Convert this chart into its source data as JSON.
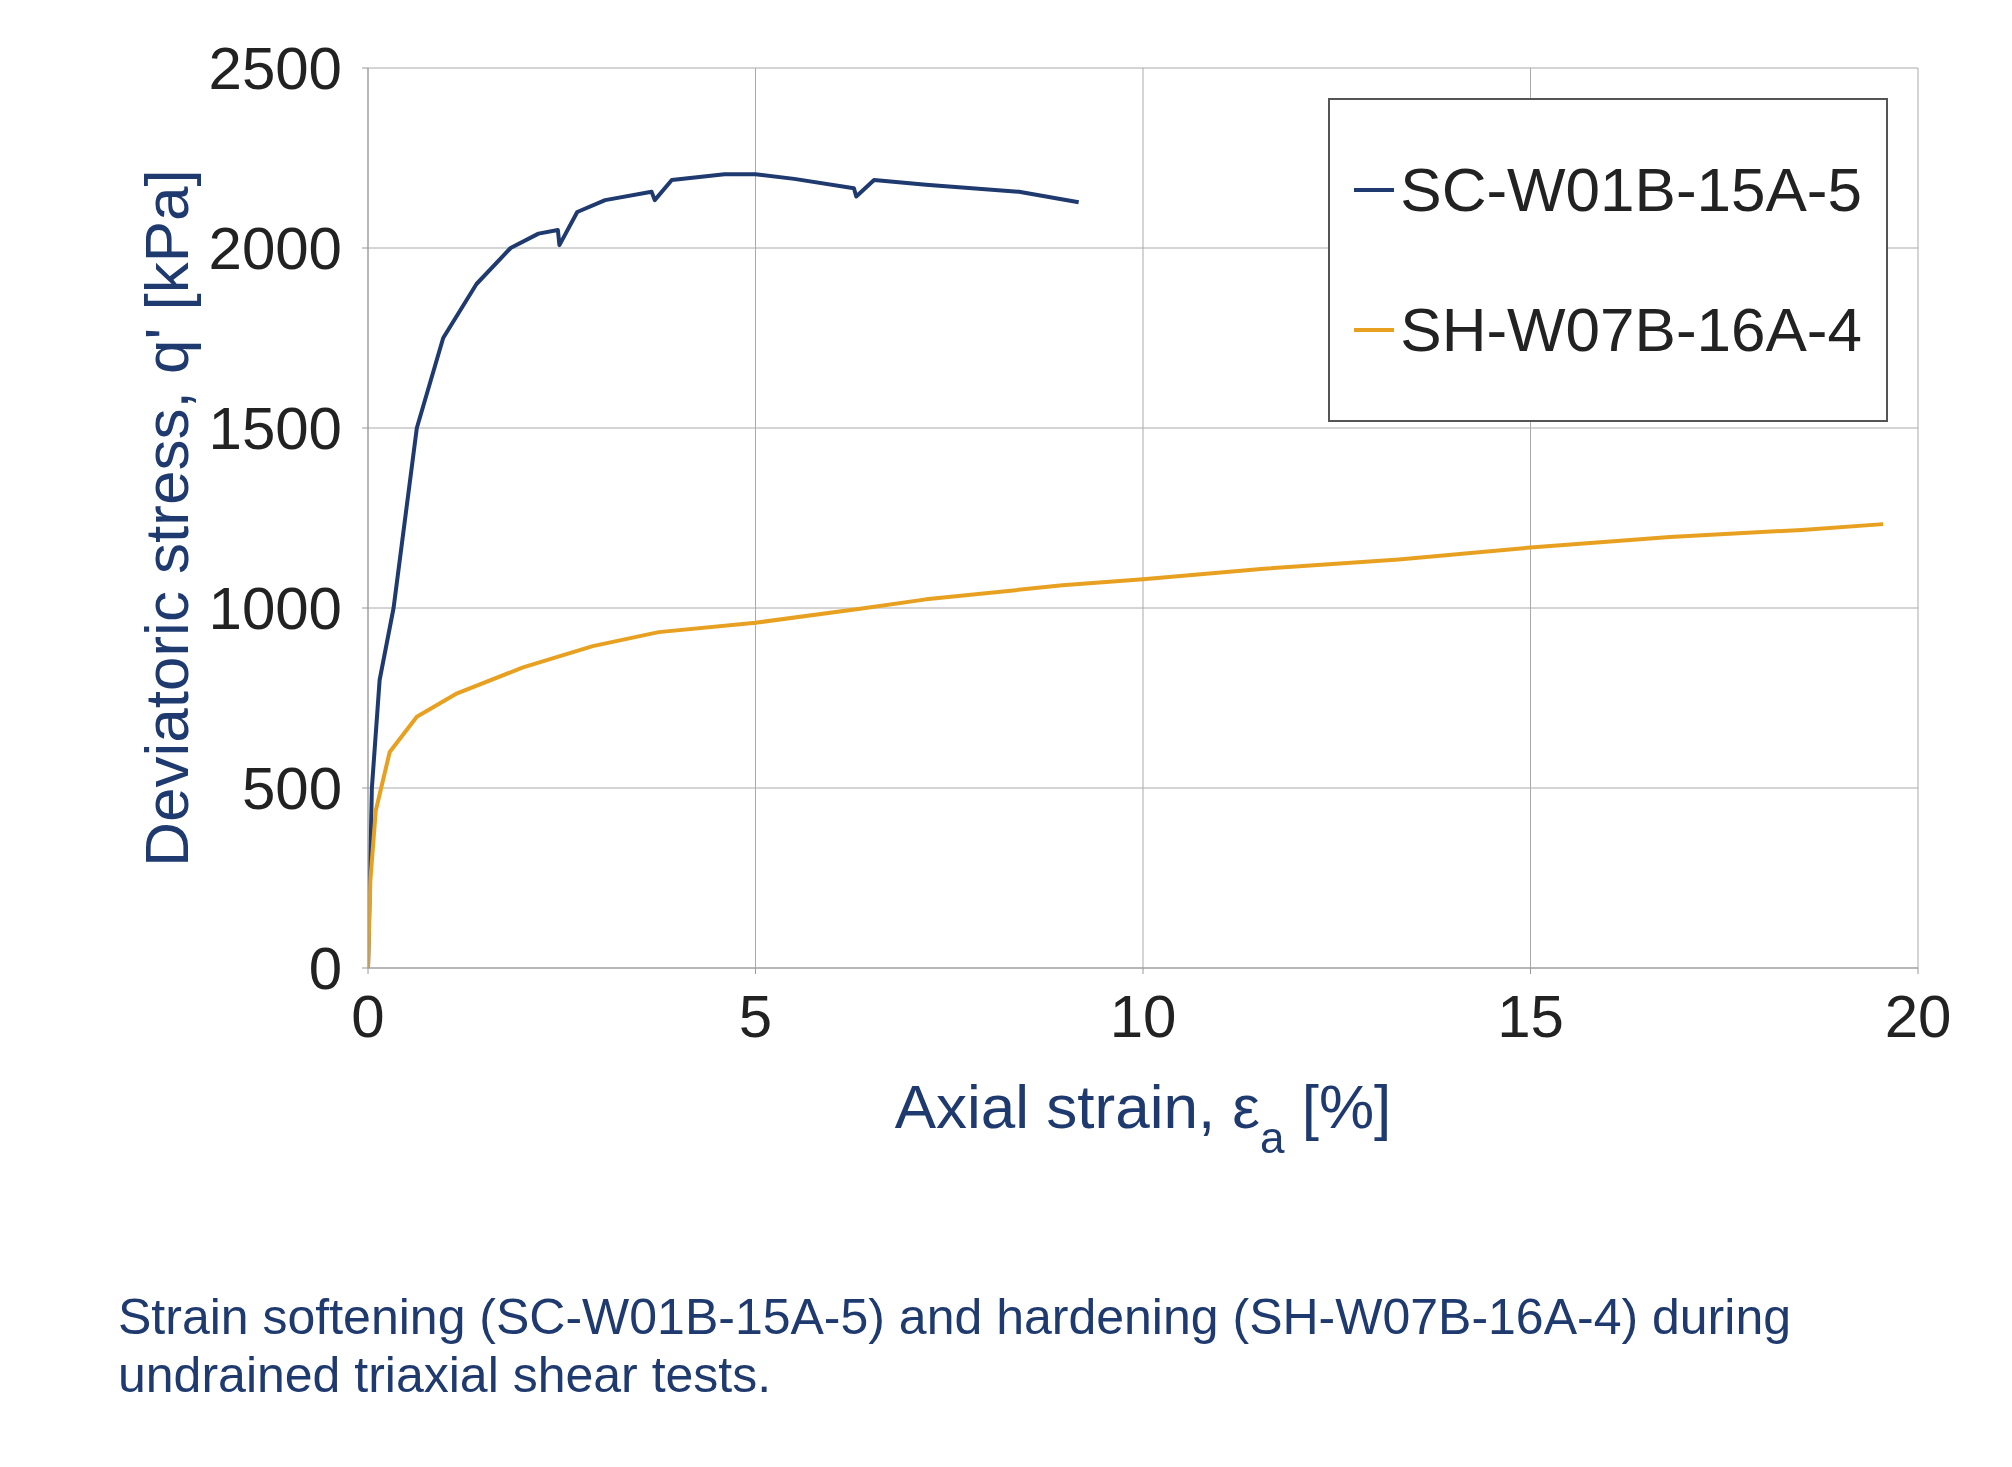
{
  "chart_data": {
    "type": "line",
    "xlabel": "Axial strain, ε$_{a}$ [%]",
    "ylabel": "Deviatoric stress, q' [kPa]",
    "xlim": [
      0,
      20
    ],
    "xticks": [
      0,
      5,
      10,
      15,
      20
    ],
    "ylim": [
      0,
      2500
    ],
    "yticks": [
      0,
      500,
      1000,
      1500,
      2000,
      2500
    ],
    "grid": true,
    "legend": "top right",
    "marker": "none",
    "line_style": "solid",
    "series": [
      {
        "name": "SC-W01B-15A-5",
        "color": "#1f3a6e",
        "x": [
          0,
          0.05,
          0.15,
          0.33,
          0.63,
          0.97,
          1.4,
          1.84,
          2.2,
          2.45,
          2.47,
          2.7,
          3.06,
          3.66,
          3.7,
          3.92,
          4.6,
          5,
          5.5,
          6.27,
          6.3,
          6.53,
          7.2,
          8.4,
          9.17
        ],
        "values": [
          0,
          500,
          800,
          1000,
          1500,
          1750,
          1900,
          2000,
          2040,
          2050,
          2008,
          2100,
          2133,
          2156,
          2133,
          2189,
          2205,
          2205,
          2192,
          2166,
          2143,
          2189,
          2176,
          2156,
          2127
        ]
      },
      {
        "name": "SH-W07B-16A-4",
        "color": "#e8a020",
        "x": [
          0,
          0.03,
          0.1,
          0.28,
          0.63,
          1.15,
          2,
          2.9,
          3.75,
          5,
          6.35,
          7.2,
          8.96,
          10,
          11.56,
          13.3,
          15,
          16.8,
          18.5,
          19.55
        ],
        "values": [
          0,
          241,
          437,
          600,
          698,
          763,
          835,
          894,
          933,
          959,
          998,
          1024,
          1063,
          1080,
          1109,
          1135,
          1168,
          1197,
          1217,
          1233
        ]
      }
    ],
    "annotations": [
      "Strain softening (SC-W01B-15A-5) and hardening (SH-W07B-16A-4) during undrained triaxial shear tests."
    ]
  }
}
